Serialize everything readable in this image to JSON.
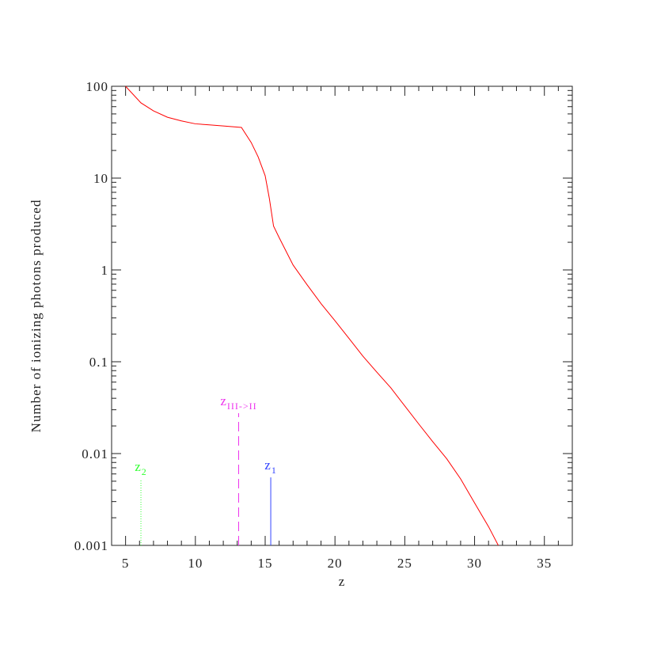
{
  "chart_data": {
    "type": "line",
    "xlabel": "z",
    "ylabel": "Number of ionizing photons produced",
    "xlim": [
      4,
      37
    ],
    "ylim": [
      0.001,
      100
    ],
    "yscale": "log",
    "xticks": [
      5,
      10,
      15,
      20,
      25,
      30,
      35
    ],
    "yticks": [
      100,
      10,
      1,
      0.1,
      0.01,
      0.001
    ],
    "xticks_minor": [
      4,
      6,
      7,
      8,
      9,
      11,
      12,
      13,
      14,
      16,
      17,
      18,
      19,
      21,
      22,
      23,
      24,
      26,
      27,
      28,
      29,
      31,
      32,
      33,
      34,
      36,
      37
    ],
    "yticks_minor": [
      0.002,
      0.003,
      0.004,
      0.005,
      0.006,
      0.007,
      0.008,
      0.009,
      0.02,
      0.03,
      0.04,
      0.05,
      0.06,
      0.07,
      0.08,
      0.09,
      0.2,
      0.3,
      0.4,
      0.5,
      0.6,
      0.7,
      0.8,
      0.9,
      2,
      3,
      4,
      5,
      6,
      7,
      8,
      9,
      20,
      30,
      40,
      50,
      60,
      70,
      80,
      90
    ],
    "series": [
      {
        "color": "#ff0000",
        "x": [
          5,
          6.1,
          7,
          8,
          9,
          10,
          11,
          12,
          13.3,
          14,
          14.5,
          15,
          15.3,
          15.6,
          16,
          17,
          18,
          19,
          20,
          21,
          22,
          23,
          24,
          25,
          26,
          27,
          28,
          29,
          30,
          31,
          31.7
        ],
        "values": [
          100,
          66,
          54,
          46,
          42,
          39,
          38,
          37,
          35.6,
          24.4,
          17,
          10.6,
          6,
          3,
          2.25,
          1.13,
          0.69,
          0.43,
          0.28,
          0.18,
          0.115,
          0.077,
          0.052,
          0.033,
          0.021,
          0.0135,
          0.0088,
          0.0053,
          0.0029,
          0.0016,
          0.001
        ]
      }
    ],
    "markers": [
      {
        "text": "z",
        "sub": "2",
        "x": 6.1,
        "top": 0.0053,
        "color": "#33ff33",
        "dash": "1,2"
      },
      {
        "text": "z",
        "sub": "III->II",
        "x": 13.1,
        "top": 0.0275,
        "color": "#ee33ee",
        "dash": "12,6"
      },
      {
        "text": "z",
        "sub": "1",
        "x": 15.4,
        "top": 0.0055,
        "color": "#3344ff",
        "dash": "none"
      }
    ]
  }
}
